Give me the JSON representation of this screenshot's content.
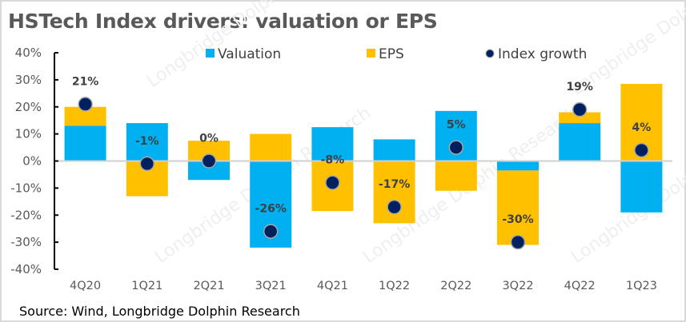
{
  "chart_data": {
    "type": "bar",
    "subtype": "stacked-bar-with-markers",
    "title": "HSTech Index drivers:  valuation or EPS",
    "source": "Source: Wind, Longbridge Dolphin Research",
    "xlabel": "",
    "ylabel": "",
    "ylim": [
      -40,
      40
    ],
    "yticks": [
      40,
      30,
      20,
      10,
      0,
      -10,
      -20,
      -30,
      -40
    ],
    "ytick_labels": [
      "40%",
      "30%",
      "20%",
      "10%",
      "0%",
      "-10%",
      "-20%",
      "-30%",
      "-40%"
    ],
    "categories": [
      "4Q20",
      "1Q21",
      "2Q21",
      "3Q21",
      "4Q21",
      "1Q22",
      "2Q22",
      "3Q22",
      "4Q22",
      "1Q23"
    ],
    "series": [
      {
        "name": "Valuation",
        "kind": "bar",
        "color": "#00B0F0",
        "values": [
          13,
          14,
          -7,
          -32,
          12.5,
          8,
          18.5,
          -3.5,
          14,
          -19
        ]
      },
      {
        "name": "EPS",
        "kind": "bar",
        "color": "#FFC000",
        "values": [
          7,
          -13,
          7.5,
          10,
          -18.5,
          -23,
          -11,
          -27.5,
          4,
          28.5
        ]
      },
      {
        "name": "Index growth",
        "kind": "marker",
        "color": "#002060",
        "values": [
          21,
          -1,
          0,
          -26,
          -8,
          -17,
          5,
          -30,
          19,
          4
        ],
        "labels": [
          "21%",
          "-1%",
          "0%",
          "-26%",
          "-8%",
          "-17%",
          "5%",
          "-30%",
          "19%",
          "4%"
        ]
      }
    ],
    "legend": {
      "position": "top",
      "entries": [
        "Valuation",
        "EPS",
        "Index growth"
      ]
    },
    "grid": false,
    "watermark": "Longbridge Dolphin Research"
  }
}
